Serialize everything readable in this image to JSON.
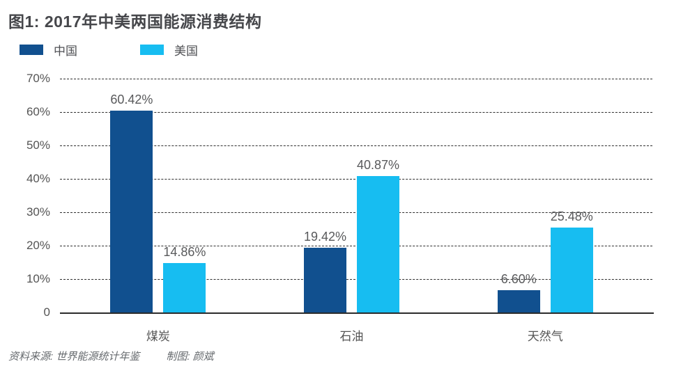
{
  "title": "图1: 2017年中美两国能源消费结构",
  "chart_data": {
    "type": "bar",
    "title": "图1: 2017年中美两国能源消费结构",
    "categories": [
      "煤炭",
      "石油",
      "天然气"
    ],
    "series": [
      {
        "name": "中国",
        "color": "#11508f",
        "values": [
          60.42,
          19.42,
          6.6
        ],
        "labels": [
          "60.42%",
          "19.42%",
          "6.60%"
        ]
      },
      {
        "name": "美国",
        "color": "#17bdf1",
        "values": [
          14.86,
          40.87,
          25.48
        ],
        "labels": [
          "14.86%",
          "40.87%",
          "25.48%"
        ]
      }
    ],
    "y_ticks": [
      "70%",
      "60%",
      "50%",
      "40%",
      "30%",
      "20%",
      "10%",
      "0"
    ],
    "ylim": [
      0,
      70
    ],
    "y_step": 10,
    "grid": "horizontal-dashed",
    "legend_position": "top-left",
    "value_labels_shown": true
  },
  "footer": {
    "source": "资料来源: 世界能源统计年鉴",
    "credit": "制图: 颜斌"
  }
}
